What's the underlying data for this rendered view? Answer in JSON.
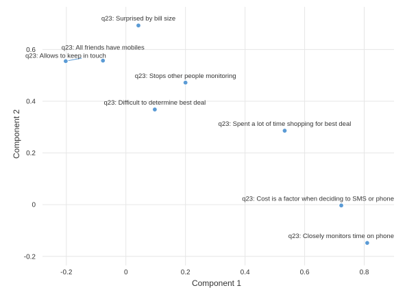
{
  "chart_data": {
    "type": "scatter",
    "xlabel": "Component 1",
    "ylabel": "Component 2",
    "xlim": [
      -0.28,
      0.9
    ],
    "ylim": [
      -0.235,
      0.765
    ],
    "x_ticks": [
      -0.2,
      0,
      0.2,
      0.4,
      0.6,
      0.8
    ],
    "x_tick_labels": [
      "-0.2",
      "0",
      "0.2",
      "0.4",
      "0.6",
      "0.8"
    ],
    "y_ticks": [
      -0.2,
      0,
      0.2,
      0.4,
      0.6
    ],
    "y_tick_labels": [
      "-0.2",
      "0",
      "0.2",
      "0.4",
      "0.6"
    ],
    "grid": true,
    "point_color": "#5b9bd5",
    "points": [
      {
        "label": "q23: Surprised by bill size",
        "x": 0.042,
        "y": 0.693
      },
      {
        "label": "q23: All friends have mobiles",
        "x": -0.077,
        "y": 0.557
      },
      {
        "label": "q23: Allows to keep in touch",
        "x": -0.202,
        "y": 0.555
      },
      {
        "label": "q23: Stops other people monitoring",
        "x": 0.2,
        "y": 0.472
      },
      {
        "label": "q23: Difficult to determine best deal",
        "x": 0.097,
        "y": 0.368
      },
      {
        "label": "q23: Spent a lot of time shopping for best deal",
        "x": 0.533,
        "y": 0.286
      },
      {
        "label": "q23: Cost is a factor when deciding to SMS or phone",
        "x": 0.723,
        "y": -0.003
      },
      {
        "label": "q23: Closely monitors time on phone",
        "x": 0.81,
        "y": -0.148
      }
    ]
  }
}
